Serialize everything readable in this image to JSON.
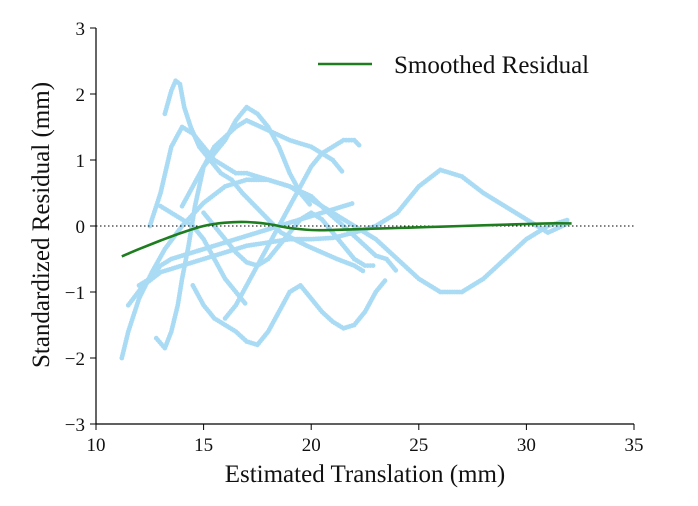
{
  "chart_data": {
    "type": "scatter",
    "title": "",
    "xlabel": "Estimated Translation (mm)",
    "ylabel": "Standardized Residual (mm)",
    "xlim": [
      10,
      35
    ],
    "ylim": [
      -3,
      3
    ],
    "xticks": [
      "10",
      "15",
      "20",
      "25",
      "30",
      "35"
    ],
    "yticks": [
      "3",
      "2",
      "1",
      "0",
      "−1",
      "−2",
      "−3"
    ],
    "grid": false,
    "zero_line": {
      "y": 0,
      "style": "dotted",
      "color": "#000000"
    },
    "scatter_color": "#aadbf5",
    "legend": {
      "placement": "top-right",
      "entries": [
        "Smoothed Residual"
      ]
    },
    "series": [
      {
        "name": "Smoothed Residual",
        "kind": "line",
        "color": "#1e7d1e",
        "x": [
          11.2,
          12.0,
          13.0,
          14.0,
          15.0,
          16.0,
          17.0,
          18.0,
          19.0,
          20.0,
          21.0,
          22.0,
          23.0,
          24.0,
          25.0,
          26.0,
          27.0,
          28.0,
          29.0,
          30.0,
          31.0,
          32.1
        ],
        "y": [
          -0.46,
          -0.35,
          -0.22,
          -0.1,
          0.0,
          0.05,
          0.06,
          0.03,
          -0.03,
          -0.06,
          -0.06,
          -0.05,
          -0.04,
          -0.03,
          -0.02,
          -0.01,
          0.0,
          0.01,
          0.02,
          0.03,
          0.04,
          0.04
        ]
      }
    ],
    "scatter_trajectories": [
      {
        "x": [
          11.2,
          11.5,
          12.0,
          12.6,
          13.2,
          14.0,
          15.0,
          16.0,
          17.0,
          18.0,
          19.0,
          20.0,
          20.8,
          21.5,
          22.0,
          23.0,
          23.5,
          24.0
        ],
        "y": [
          -2.0,
          -1.6,
          -1.1,
          -0.7,
          -0.35,
          0.0,
          0.35,
          0.6,
          0.7,
          0.7,
          0.6,
          0.45,
          0.2,
          0.0,
          -0.15,
          -0.45,
          -0.5,
          -0.7
        ]
      },
      {
        "x": [
          11.5,
          12.2,
          13.0,
          14.0,
          15.0,
          16.0,
          17.0,
          18.0,
          19.0,
          20.0,
          21.0,
          22.0,
          23.0,
          24.0,
          25.0,
          26.0,
          27.0,
          28.0,
          29.0,
          30.0,
          31.0,
          32.0
        ],
        "y": [
          -1.2,
          -0.9,
          -0.7,
          -0.6,
          -0.5,
          -0.4,
          -0.3,
          -0.25,
          -0.2,
          -0.2,
          -0.18,
          -0.1,
          0.0,
          0.2,
          0.6,
          0.85,
          0.75,
          0.5,
          0.3,
          0.1,
          -0.1,
          0.05
        ]
      },
      {
        "x": [
          12.5,
          13.0,
          13.5,
          14.0,
          14.5,
          15.0,
          15.5,
          16.0,
          16.5,
          17.0,
          18.0,
          19.0,
          20.0,
          21.0,
          22.0,
          23.0,
          24.0,
          25.0,
          26.0,
          27.0,
          28.0,
          29.0,
          30.0,
          31.0,
          32.0
        ],
        "y": [
          0.0,
          0.5,
          1.2,
          1.5,
          1.4,
          1.2,
          1.0,
          0.9,
          0.8,
          0.8,
          0.7,
          0.6,
          0.4,
          0.2,
          0.0,
          -0.2,
          -0.5,
          -0.8,
          -1.0,
          -1.0,
          -0.8,
          -0.5,
          -0.2,
          0.0,
          0.1
        ]
      },
      {
        "x": [
          12.8,
          13.2,
          13.5,
          13.8,
          14.0,
          14.3,
          14.6,
          15.0,
          15.5,
          16.0,
          16.5,
          17.0,
          18.0,
          19.0,
          20.0,
          21.0,
          21.5
        ],
        "y": [
          -1.7,
          -1.85,
          -1.6,
          -1.2,
          -0.8,
          -0.3,
          0.3,
          0.9,
          1.2,
          1.35,
          1.5,
          1.6,
          1.45,
          1.3,
          1.2,
          1.0,
          0.8
        ]
      },
      {
        "x": [
          13.2,
          13.5,
          13.7,
          13.9,
          14.1,
          14.4,
          14.8,
          15.3,
          15.8,
          16.3,
          16.8,
          17.4,
          18.0,
          18.6,
          19.2,
          19.8,
          20.5,
          21.2,
          22.0,
          22.5
        ],
        "y": [
          1.7,
          2.05,
          2.2,
          2.15,
          1.8,
          1.5,
          1.2,
          1.0,
          0.8,
          0.7,
          0.5,
          0.3,
          0.1,
          -0.1,
          -0.2,
          -0.3,
          -0.4,
          -0.5,
          -0.6,
          -0.7
        ]
      },
      {
        "x": [
          14.5,
          15.0,
          15.5,
          16.0,
          16.5,
          17.0,
          17.5,
          18.0,
          18.5,
          19.0,
          19.5,
          20.0,
          20.5,
          21.0,
          21.5,
          22.0,
          22.5,
          23.0,
          23.5
        ],
        "y": [
          -0.9,
          -1.2,
          -1.4,
          -1.5,
          -1.6,
          -1.75,
          -1.8,
          -1.6,
          -1.3,
          -1.0,
          -0.9,
          -1.1,
          -1.3,
          -1.45,
          -1.55,
          -1.5,
          -1.3,
          -1.0,
          -0.8
        ]
      },
      {
        "x": [
          14.0,
          14.5,
          15.0,
          15.5,
          16.0,
          16.5,
          17.0,
          17.5,
          18.0,
          18.5,
          19.0,
          19.5,
          20.0
        ],
        "y": [
          0.3,
          0.6,
          0.9,
          1.1,
          1.3,
          1.6,
          1.8,
          1.7,
          1.5,
          1.2,
          0.8,
          0.5,
          0.3
        ]
      },
      {
        "x": [
          16.0,
          16.5,
          17.0,
          17.5,
          18.0,
          18.5,
          19.0,
          19.5,
          20.0,
          20.5,
          21.0,
          21.5,
          22.0,
          22.3
        ],
        "y": [
          -1.4,
          -1.2,
          -0.9,
          -0.6,
          -0.3,
          0.0,
          0.3,
          0.6,
          0.9,
          1.1,
          1.2,
          1.3,
          1.3,
          1.2
        ]
      },
      {
        "x": [
          12.0,
          12.5,
          13.0,
          13.5,
          14.0,
          14.5,
          15.0,
          15.5,
          16.0,
          16.5,
          17.0,
          17.5,
          18.0,
          18.5,
          19.0,
          19.5,
          20.0,
          20.5,
          21.0,
          21.5,
          22.0
        ],
        "y": [
          -0.9,
          -0.8,
          -0.6,
          -0.5,
          -0.45,
          -0.4,
          -0.35,
          -0.3,
          -0.25,
          -0.2,
          -0.15,
          -0.1,
          -0.05,
          0.0,
          0.05,
          0.1,
          0.15,
          0.2,
          0.25,
          0.3,
          0.35
        ]
      },
      {
        "x": [
          15.0,
          15.5,
          16.0,
          16.5,
          17.0,
          17.5,
          18.0,
          18.5,
          19.0,
          19.5,
          20.0,
          20.5,
          21.0,
          21.5,
          22.0,
          22.5,
          23.0
        ],
        "y": [
          0.2,
          0.0,
          -0.2,
          -0.4,
          -0.55,
          -0.6,
          -0.5,
          -0.3,
          -0.1,
          0.1,
          0.2,
          0.1,
          -0.1,
          -0.3,
          -0.5,
          -0.6,
          -0.6
        ]
      },
      {
        "x": [
          13.0,
          13.5,
          14.0,
          14.5,
          15.0,
          15.5,
          16.0,
          16.5,
          17.0
        ],
        "y": [
          0.3,
          0.2,
          0.1,
          0.0,
          -0.2,
          -0.5,
          -0.8,
          -1.0,
          -1.2
        ]
      }
    ]
  }
}
